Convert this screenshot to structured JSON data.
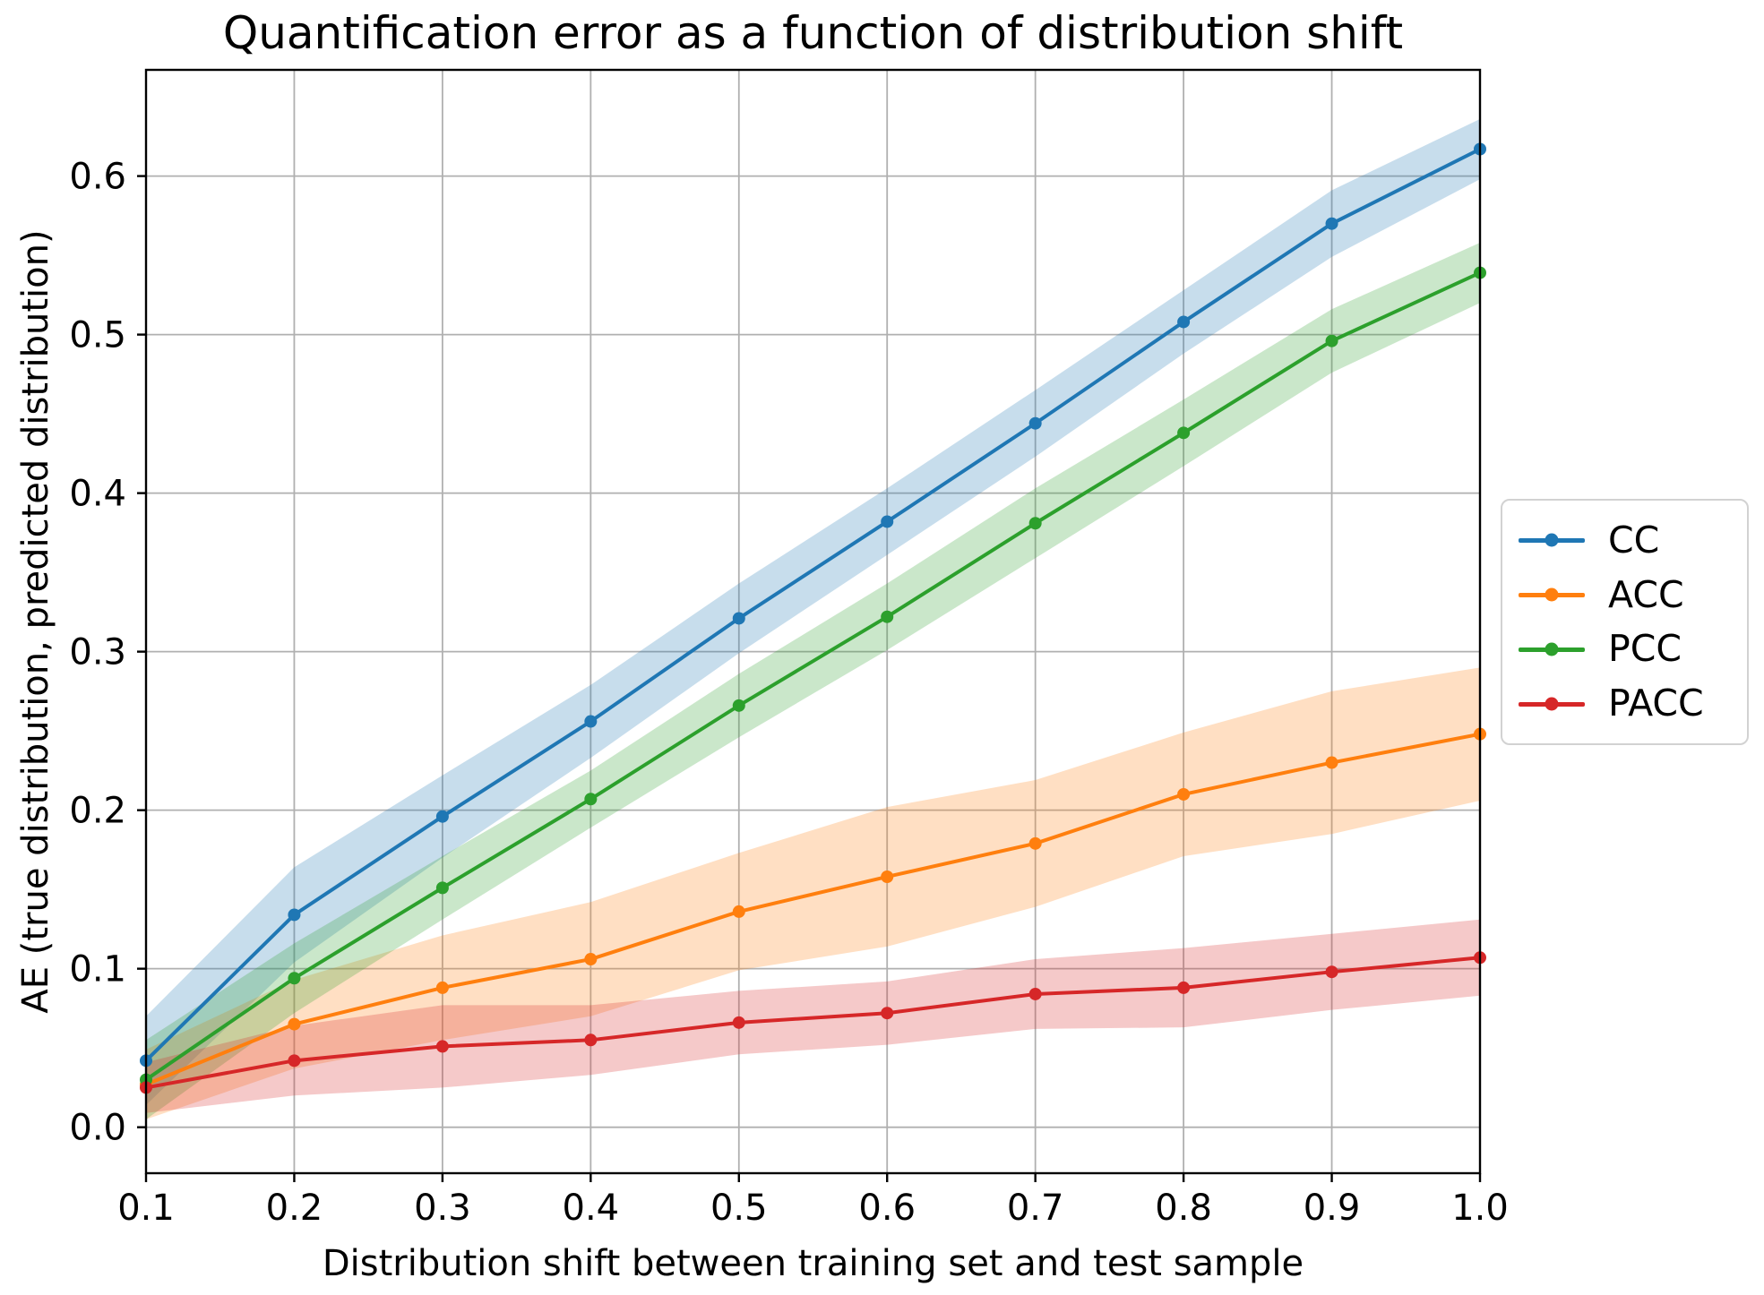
{
  "title": "Quantification error as a function of distribution shift",
  "chart_data": {
    "type": "line",
    "title": "Quantification error as a function of distribution shift",
    "xlabel": "Distribution shift between training set and test sample",
    "ylabel": "AE (true distribution, predicted distribution)",
    "x": [
      0.1,
      0.2,
      0.3,
      0.4,
      0.5,
      0.6,
      0.7,
      0.8,
      0.9,
      1.0
    ],
    "xlim": [
      0.1,
      1.0
    ],
    "ylim": [
      -0.029,
      0.667
    ],
    "x_ticks": [
      0.1,
      0.2,
      0.3,
      0.4,
      0.5,
      0.6,
      0.7,
      0.8,
      0.9,
      1.0
    ],
    "x_tick_labels": [
      "0.1",
      "0.2",
      "0.3",
      "0.4",
      "0.5",
      "0.6",
      "0.7",
      "0.8",
      "0.9",
      "1.0"
    ],
    "y_ticks": [
      0.0,
      0.1,
      0.2,
      0.3,
      0.4,
      0.5,
      0.6
    ],
    "y_tick_labels": [
      "0.0",
      "0.1",
      "0.2",
      "0.3",
      "0.4",
      "0.5",
      "0.6"
    ],
    "grid": true,
    "grid_color": "#b0b0b0",
    "axis_color": "#000000",
    "band_opacity": 0.25,
    "legend_position": "outside-right",
    "series": [
      {
        "name": "CC",
        "color": "#1f77b4",
        "values": [
          0.042,
          0.134,
          0.196,
          0.256,
          0.321,
          0.382,
          0.444,
          0.508,
          0.57,
          0.617
        ],
        "band_lower": [
          0.014,
          0.104,
          0.17,
          0.233,
          0.299,
          0.361,
          0.423,
          0.488,
          0.549,
          0.598
        ],
        "band_upper": [
          0.07,
          0.164,
          0.222,
          0.279,
          0.343,
          0.403,
          0.465,
          0.528,
          0.591,
          0.636
        ]
      },
      {
        "name": "ACC",
        "color": "#ff7f0e",
        "values": [
          0.027,
          0.065,
          0.088,
          0.106,
          0.136,
          0.158,
          0.179,
          0.21,
          0.23,
          0.248
        ],
        "band_lower": [
          0.005,
          0.037,
          0.055,
          0.07,
          0.099,
          0.114,
          0.139,
          0.171,
          0.185,
          0.206
        ],
        "band_upper": [
          0.049,
          0.093,
          0.121,
          0.142,
          0.173,
          0.202,
          0.219,
          0.249,
          0.275,
          0.29
        ]
      },
      {
        "name": "PCC",
        "color": "#2ca02c",
        "values": [
          0.03,
          0.094,
          0.151,
          0.207,
          0.266,
          0.322,
          0.381,
          0.438,
          0.496,
          0.539
        ],
        "band_lower": [
          0.005,
          0.072,
          0.131,
          0.189,
          0.246,
          0.301,
          0.359,
          0.417,
          0.476,
          0.52
        ],
        "band_upper": [
          0.055,
          0.116,
          0.171,
          0.225,
          0.286,
          0.343,
          0.403,
          0.459,
          0.516,
          0.558
        ]
      },
      {
        "name": "PACC",
        "color": "#d62728",
        "values": [
          0.025,
          0.042,
          0.051,
          0.055,
          0.066,
          0.072,
          0.084,
          0.088,
          0.098,
          0.107
        ],
        "band_lower": [
          0.009,
          0.02,
          0.025,
          0.033,
          0.046,
          0.052,
          0.062,
          0.063,
          0.074,
          0.083
        ],
        "band_upper": [
          0.041,
          0.064,
          0.077,
          0.077,
          0.086,
          0.092,
          0.106,
          0.113,
          0.122,
          0.131
        ]
      }
    ]
  },
  "legend": {
    "entries": [
      "CC",
      "ACC",
      "PCC",
      "PACC"
    ]
  }
}
